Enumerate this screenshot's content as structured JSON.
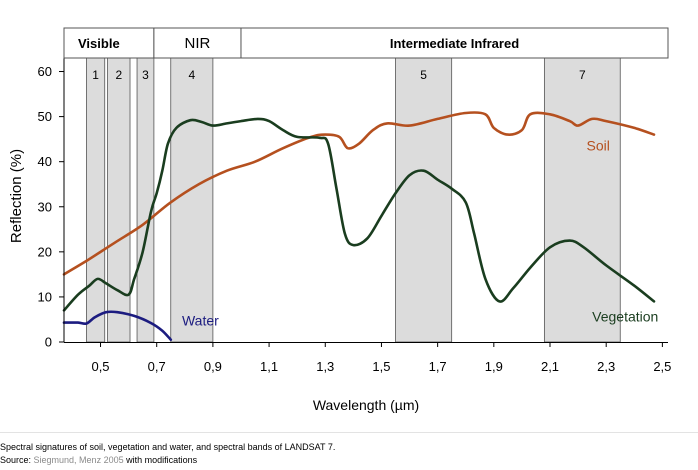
{
  "chart_data": {
    "type": "line",
    "title": "",
    "xlabel": "Wavelength (µm)",
    "ylabel": "Reflection (%)",
    "xlim": [
      0.37,
      2.52
    ],
    "ylim": [
      0,
      63
    ],
    "x_ticks": [
      0.5,
      0.7,
      0.9,
      1.1,
      1.3,
      1.5,
      1.7,
      1.9,
      2.1,
      2.3,
      2.5
    ],
    "x_tick_labels": [
      "0,5",
      "0,7",
      "0,9",
      "1,1",
      "1,3",
      "1,5",
      "1,7",
      "1,9",
      "2,1",
      "2,3",
      "2,5"
    ],
    "y_ticks": [
      0,
      10,
      20,
      30,
      40,
      50,
      60
    ],
    "y_tick_labels": [
      "0",
      "10",
      "20",
      "30",
      "40",
      "50",
      "60"
    ],
    "regions": [
      {
        "label": "Visible",
        "x0": 0.37,
        "x1": 0.69
      },
      {
        "label": "NIR",
        "x0": 0.69,
        "x1": 1.0
      },
      {
        "label": "Intermediate Infrared",
        "x0": 1.0,
        "x1": 2.52
      }
    ],
    "bands": [
      {
        "label": "1",
        "x0": 0.45,
        "x1": 0.515
      },
      {
        "label": "2",
        "x0": 0.525,
        "x1": 0.605
      },
      {
        "label": "3",
        "x0": 0.63,
        "x1": 0.69
      },
      {
        "label": "4",
        "x0": 0.75,
        "x1": 0.9
      },
      {
        "label": "5",
        "x0": 1.55,
        "x1": 1.75
      },
      {
        "label": "7",
        "x0": 2.08,
        "x1": 2.35
      }
    ],
    "band_fill": "#dcdcdc",
    "series": [
      {
        "name": "Soil",
        "color": "#b5501f",
        "points": [
          [
            0.37,
            15
          ],
          [
            0.45,
            18
          ],
          [
            0.55,
            22
          ],
          [
            0.65,
            26
          ],
          [
            0.75,
            31
          ],
          [
            0.85,
            35
          ],
          [
            0.95,
            38
          ],
          [
            1.05,
            40
          ],
          [
            1.15,
            43
          ],
          [
            1.25,
            45.5
          ],
          [
            1.3,
            46
          ],
          [
            1.35,
            45.5
          ],
          [
            1.38,
            43
          ],
          [
            1.42,
            44
          ],
          [
            1.47,
            47
          ],
          [
            1.52,
            48.5
          ],
          [
            1.6,
            48
          ],
          [
            1.7,
            49.5
          ],
          [
            1.8,
            50.8
          ],
          [
            1.87,
            50.5
          ],
          [
            1.9,
            47.5
          ],
          [
            1.95,
            46
          ],
          [
            2.0,
            47
          ],
          [
            2.03,
            50.5
          ],
          [
            2.1,
            50.5
          ],
          [
            2.17,
            49
          ],
          [
            2.2,
            48
          ],
          [
            2.25,
            49.5
          ],
          [
            2.3,
            49
          ],
          [
            2.4,
            47.5
          ],
          [
            2.47,
            46
          ]
        ]
      },
      {
        "name": "Vegetation",
        "color": "#1a3d1f",
        "points": [
          [
            0.37,
            7
          ],
          [
            0.42,
            10.5
          ],
          [
            0.46,
            12.5
          ],
          [
            0.49,
            14
          ],
          [
            0.52,
            13
          ],
          [
            0.56,
            11.5
          ],
          [
            0.6,
            10.5
          ],
          [
            0.62,
            14
          ],
          [
            0.65,
            20
          ],
          [
            0.68,
            29
          ],
          [
            0.7,
            33
          ],
          [
            0.72,
            38
          ],
          [
            0.74,
            44
          ],
          [
            0.77,
            47.5
          ],
          [
            0.82,
            49.2
          ],
          [
            0.86,
            48.8
          ],
          [
            0.9,
            48
          ],
          [
            0.95,
            48.5
          ],
          [
            1.0,
            49
          ],
          [
            1.06,
            49.5
          ],
          [
            1.1,
            49
          ],
          [
            1.15,
            47
          ],
          [
            1.2,
            45.5
          ],
          [
            1.28,
            45.3
          ],
          [
            1.31,
            44
          ],
          [
            1.34,
            34
          ],
          [
            1.37,
            24
          ],
          [
            1.4,
            21.5
          ],
          [
            1.45,
            23
          ],
          [
            1.5,
            28
          ],
          [
            1.55,
            33
          ],
          [
            1.6,
            37
          ],
          [
            1.65,
            38
          ],
          [
            1.7,
            36
          ],
          [
            1.75,
            34
          ],
          [
            1.8,
            31
          ],
          [
            1.83,
            24
          ],
          [
            1.87,
            14
          ],
          [
            1.92,
            9
          ],
          [
            1.97,
            12
          ],
          [
            2.03,
            16.5
          ],
          [
            2.1,
            21
          ],
          [
            2.17,
            22.5
          ],
          [
            2.22,
            21
          ],
          [
            2.3,
            17
          ],
          [
            2.4,
            12.5
          ],
          [
            2.47,
            9
          ]
        ]
      },
      {
        "name": "Water",
        "color": "#1c1c80",
        "points": [
          [
            0.37,
            4.3
          ],
          [
            0.42,
            4.3
          ],
          [
            0.45,
            4.1
          ],
          [
            0.48,
            5.5
          ],
          [
            0.52,
            6.6
          ],
          [
            0.56,
            6.6
          ],
          [
            0.62,
            5.8
          ],
          [
            0.68,
            4.2
          ],
          [
            0.72,
            2.5
          ],
          [
            0.75,
            0.5
          ]
        ]
      }
    ],
    "series_labels": [
      {
        "series": "Soil",
        "text": "Soil",
        "x": 2.23,
        "y": 42.5
      },
      {
        "series": "Vegetation",
        "text": "Vegetation",
        "x": 2.25,
        "y": 4.6
      },
      {
        "series": "Water",
        "text": "Water",
        "x": 0.79,
        "y": 3.7
      }
    ]
  },
  "caption": {
    "line1": "Spectral signatures of soil, vegetation and water, and spectral bands of LANDSAT 7.",
    "source_prefix": "Source: ",
    "source_link": "Siegmund, Menz 2005",
    "source_suffix": " with modifications"
  }
}
